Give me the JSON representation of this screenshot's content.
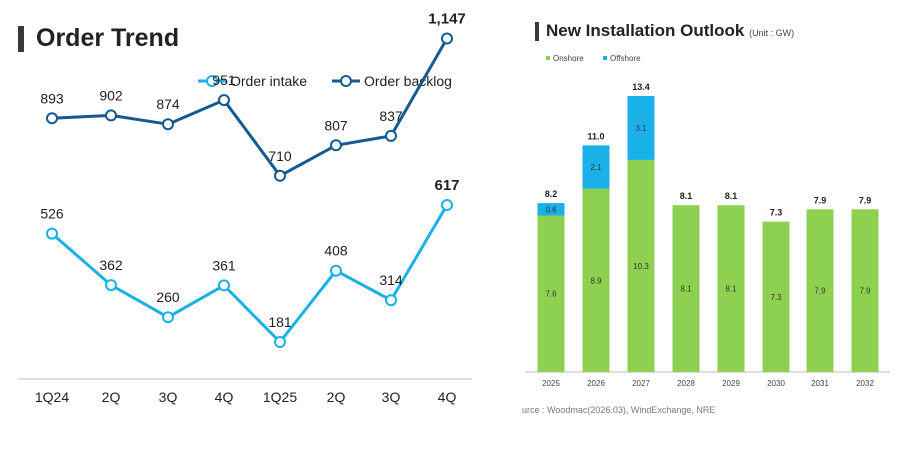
{
  "left_panel": {
    "title": "Order Trend"
  },
  "right_panel": {
    "title": "New Installation Outlook",
    "unit": "(Unit : GW)",
    "source": "urce : Woodmac(2026.03), WindExchange, NRE"
  },
  "colors": {
    "order_intake": "#1ab0e8",
    "order_backlog": "#145a92",
    "onshore": "#8ed150",
    "offshore": "#1ab0e8",
    "axis": "#bfbfbf"
  },
  "chart_data": [
    {
      "type": "line",
      "title": "Order Trend",
      "categories": [
        "1Q24",
        "2Q",
        "3Q",
        "4Q",
        "1Q25",
        "2Q",
        "3Q",
        "4Q"
      ],
      "series": [
        {
          "name": "Order intake",
          "values": [
            526,
            362,
            260,
            361,
            181,
            408,
            314,
            617
          ],
          "labels": [
            "526",
            "362",
            "260",
            "361",
            "181",
            "408",
            "314",
            "617"
          ]
        },
        {
          "name": "Order backlog",
          "values": [
            893,
            902,
            874,
            951,
            710,
            807,
            837,
            1147
          ],
          "labels": [
            "893",
            "902",
            "874",
            "951",
            "710",
            "807",
            "837",
            "1,147"
          ]
        }
      ],
      "highlight_last": true,
      "legend_position": "top-right",
      "grid": false
    },
    {
      "type": "bar",
      "stacked": true,
      "title": "New Installation Outlook",
      "unit": "(Unit : GW)",
      "categories": [
        "2025",
        "2026",
        "2027",
        "2028",
        "2029",
        "2030",
        "2031",
        "2032"
      ],
      "series": [
        {
          "name": "Onshore",
          "values": [
            7.6,
            8.9,
            10.3,
            8.1,
            8.1,
            7.3,
            7.9,
            7.9
          ]
        },
        {
          "name": "Offshore",
          "values": [
            0.6,
            2.1,
            3.1,
            0,
            0,
            0,
            0,
            0
          ]
        }
      ],
      "totals": [
        "8.2",
        "11.0",
        "13.4",
        "8.1",
        "8.1",
        "7.3",
        "7.9",
        "7.9"
      ],
      "ylim": [
        0,
        13.4
      ],
      "legend_position": "top-left",
      "grid": false
    }
  ]
}
